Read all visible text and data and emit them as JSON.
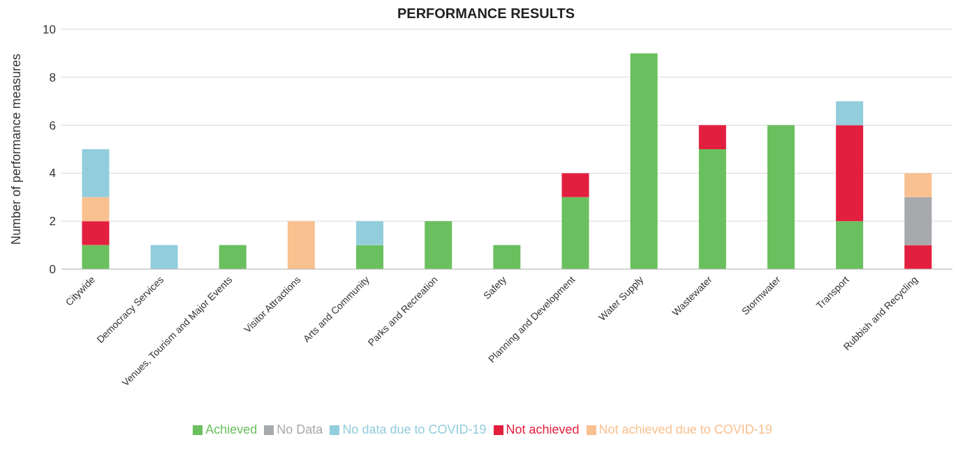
{
  "chart_data": {
    "type": "bar",
    "title": "PERFORMANCE RESULTS",
    "ylabel": "Number of performance measures",
    "stacked": true,
    "categories": [
      "Citywide",
      "Democracy Services",
      "Venues, Tourism and Major Events",
      "Visitor Attractions",
      "Arts and Community",
      "Parks and Recreation",
      "Safety",
      "Planning and Development",
      "Water Supply",
      "Wastewater",
      "Stormwater",
      "Transport",
      "Rubbish and Recycling"
    ],
    "series": [
      {
        "name": "Achieved",
        "color": "#6abf5e",
        "values": [
          1,
          0,
          1,
          0,
          1,
          2,
          1,
          3,
          9,
          5,
          6,
          2,
          0
        ]
      },
      {
        "name": "Not achieved",
        "color": "#e31f3f",
        "values": [
          1,
          0,
          0,
          0,
          0,
          0,
          0,
          1,
          0,
          1,
          0,
          4,
          1
        ]
      },
      {
        "name": "No Data",
        "color": "#a7a9ac",
        "values": [
          0,
          0,
          0,
          0,
          0,
          0,
          0,
          0,
          0,
          0,
          0,
          0,
          2
        ]
      },
      {
        "name": "Not achieved due to COVID-19",
        "color": "#f9c090",
        "values": [
          1,
          0,
          0,
          2,
          0,
          0,
          0,
          0,
          0,
          0,
          0,
          0,
          1
        ]
      },
      {
        "name": "No data due to COVID-19",
        "color": "#92cddc",
        "values": [
          2,
          1,
          0,
          0,
          1,
          0,
          0,
          0,
          0,
          0,
          0,
          1,
          0
        ]
      }
    ],
    "ylim": [
      0,
      10
    ],
    "yticks": [
      0,
      2,
      4,
      6,
      8,
      10
    ],
    "grid": "y",
    "legend": "bottom"
  }
}
